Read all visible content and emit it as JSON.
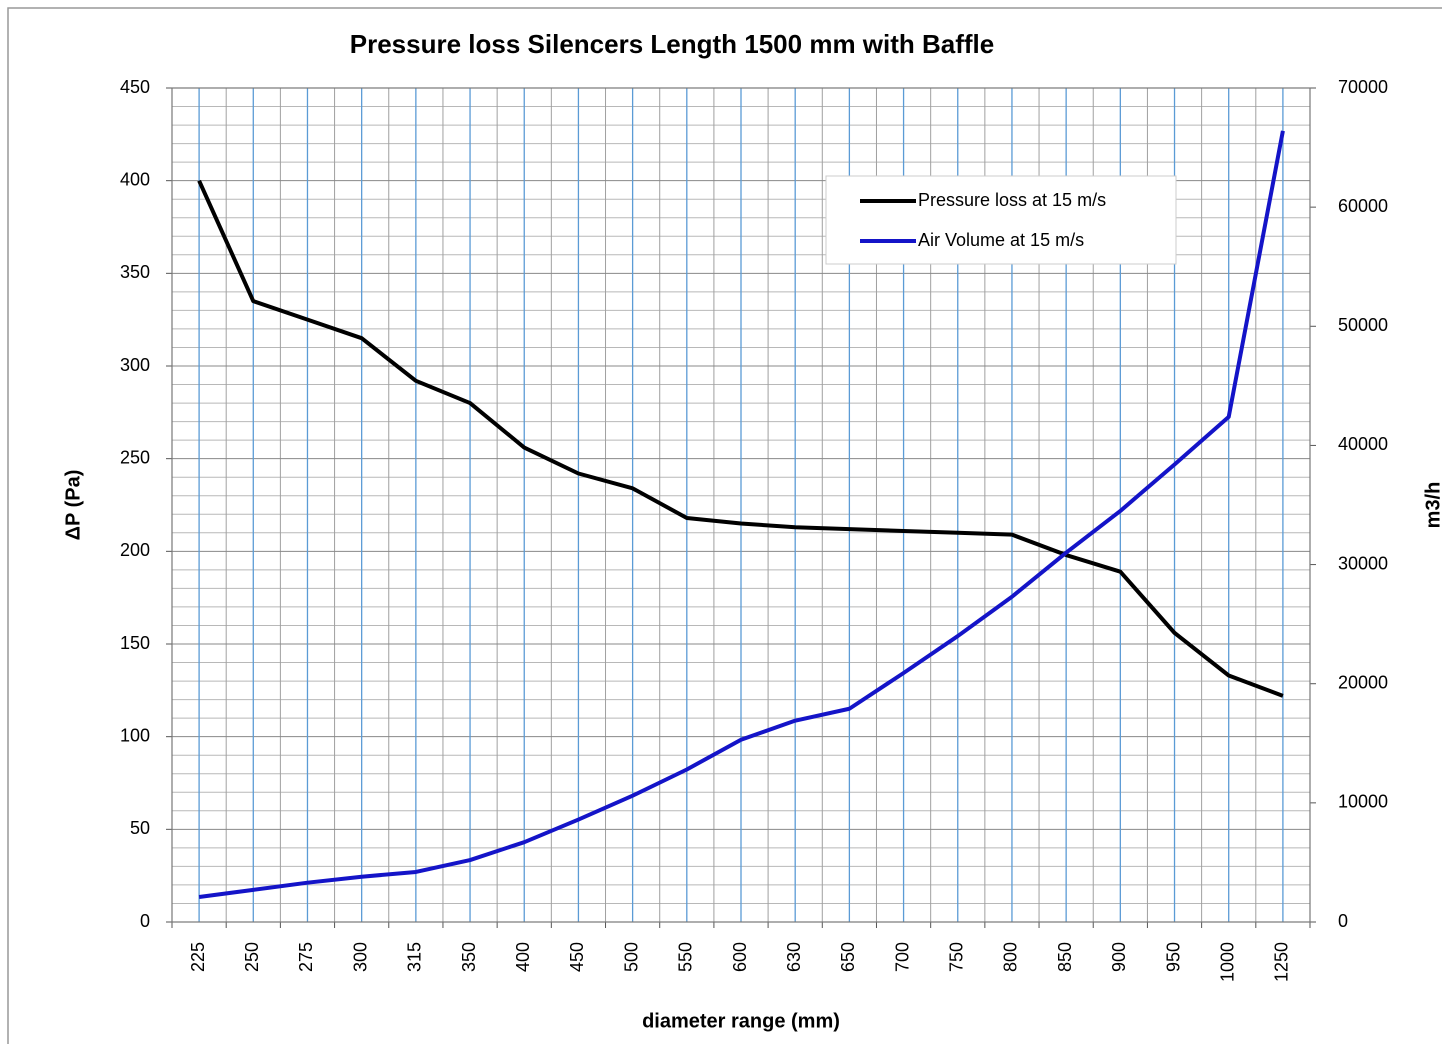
{
  "chart_data": {
    "type": "line",
    "title": "Pressure loss Silencers  Length 1500 mm with Baffle",
    "x_label": "diameter range (mm)",
    "y_label": "ΔP  (Pa)",
    "y2_label": "m3/h",
    "categories": [
      "225",
      "250",
      "275",
      "300",
      "315",
      "350",
      "400",
      "450",
      "500",
      "550",
      "600",
      "630",
      "650",
      "700",
      "750",
      "800",
      "850",
      "900",
      "950",
      "1000",
      "1250"
    ],
    "series": [
      {
        "name": "Pressure loss at 15 m/s",
        "color": "#000000",
        "values": [
          400,
          335,
          325,
          315,
          292,
          280,
          256,
          242,
          234,
          218,
          215,
          213,
          212,
          211,
          210,
          209,
          198,
          189,
          156,
          133,
          122
        ]
      },
      {
        "name": "Air Volume at  15 m/s",
        "color": "#1414c8",
        "axis": "y2",
        "values": [
          2100,
          2700,
          3300,
          3800,
          4200,
          5200,
          6700,
          8600,
          10600,
          12800,
          15300,
          16900,
          17900,
          20900,
          24000,
          27300,
          31000,
          34500,
          38400,
          42400,
          66400
        ]
      }
    ],
    "ylim": [
      0,
      450
    ],
    "yticks": [
      0,
      50,
      100,
      150,
      200,
      250,
      300,
      350,
      400,
      450
    ],
    "y2lim": [
      0,
      70000
    ],
    "y2ticks": [
      0,
      10000,
      20000,
      30000,
      40000,
      50000,
      60000,
      70000
    ],
    "grid": true,
    "legend": "upper right"
  }
}
